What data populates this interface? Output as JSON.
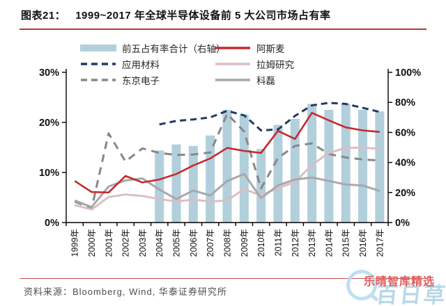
{
  "header": {
    "label": "图表21：",
    "title": "1999~2017 年全球半导体设备前 5 大公司市场占有率"
  },
  "footer": {
    "source": "资料来源：Bloomberg, Wind, 华泰证券研究所"
  },
  "watermark": {
    "red_text": "乐晴智库精选",
    "blue_text": "百日草"
  },
  "chart_data": {
    "type": "bar",
    "subtype": "combo-bar-line",
    "categories": [
      "1999年",
      "2000年",
      "2001年",
      "2002年",
      "2003年",
      "2004年",
      "2005年",
      "2006年",
      "2007年",
      "2008年",
      "2009年",
      "2010年",
      "2011年",
      "2012年",
      "2013年",
      "2014年",
      "2015年",
      "2016年",
      "2017年"
    ],
    "left_axis": {
      "ticks": [
        "0%",
        "10%",
        "20%",
        "30%"
      ],
      "range": [
        0,
        30
      ]
    },
    "right_axis": {
      "ticks": [
        "0%",
        "20%",
        "40%",
        "60%",
        "80%",
        "100%"
      ],
      "range": [
        0,
        100
      ]
    },
    "grid": "off",
    "legend_position": "top",
    "series": [
      {
        "name": "前五占有率合计（右轴）",
        "type": "bar",
        "axis": "right",
        "color": "#b2cfdc",
        "dash": "",
        "values": [
          null,
          null,
          null,
          null,
          null,
          48,
          52,
          51,
          58,
          75,
          72,
          49,
          65,
          69,
          79,
          75,
          79,
          75,
          74
        ]
      },
      {
        "name": "应用材料",
        "type": "line",
        "axis": "left",
        "color": "#223a63",
        "dash": "9,6",
        "values": [
          null,
          null,
          null,
          null,
          null,
          19.6,
          20.3,
          20.6,
          21.0,
          22.3,
          21.4,
          18.4,
          18.6,
          21.3,
          23.4,
          23.9,
          23.7,
          22.9,
          22.1
        ]
      },
      {
        "name": "东京电子",
        "type": "line",
        "axis": "left",
        "color": "#878787",
        "dash": "11,8",
        "values": [
          4.2,
          2.8,
          17.8,
          12.2,
          14.8,
          13.9,
          13.5,
          13.6,
          14.0,
          21.7,
          18.2,
          6.8,
          12.9,
          15.3,
          15.8,
          13.7,
          13.0,
          12.6,
          12.4
        ]
      },
      {
        "name": "拉姆研究",
        "type": "line",
        "axis": "left",
        "color": "#dcbec3",
        "dash": "",
        "values": [
          3.5,
          2.6,
          5.1,
          5.6,
          5.3,
          4.7,
          4.2,
          4.6,
          4.2,
          4.4,
          6.7,
          5.4,
          6.9,
          8.1,
          11.5,
          13.9,
          14.9,
          15.0,
          14.7
        ]
      },
      {
        "name": "科磊",
        "type": "line",
        "axis": "left",
        "color": "#a8a8a8",
        "dash": "",
        "values": [
          4.4,
          3.1,
          7.2,
          8.4,
          8.8,
          6.6,
          4.7,
          6.4,
          5.4,
          8.3,
          9.7,
          4.9,
          7.4,
          8.6,
          9.0,
          8.3,
          7.6,
          7.4,
          6.3
        ]
      },
      {
        "name": "阿斯麦",
        "type": "line",
        "axis": "left",
        "color": "#c42a2e",
        "dash": "",
        "values": [
          8.3,
          6.1,
          6.0,
          9.3,
          8.0,
          8.6,
          9.7,
          11.4,
          12.8,
          14.9,
          14.3,
          13.9,
          18.3,
          16.7,
          21.9,
          20.4,
          19.0,
          18.4,
          18.1
        ]
      }
    ]
  }
}
